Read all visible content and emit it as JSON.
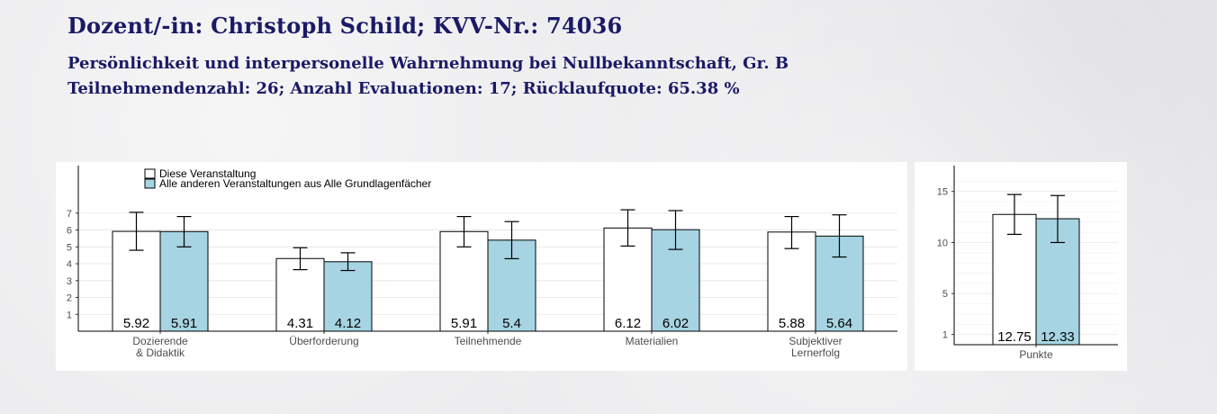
{
  "header": {
    "title": "Dozent/-in: Christoph Schild; KVV-Nr.: 74036",
    "course": "Persönlichkeit und interpersonelle Wahrnehmung bei Nullbekanntschaft, Gr. B",
    "stats": "Teilnehmendenzahl: 26; Anzahl Evaluationen: 17; Rücklaufquote: 65.38 %"
  },
  "colors": {
    "series_a": "#ffffff",
    "series_b": "#a6d4e2",
    "header_text": "#1a1a66"
  },
  "chart_data": [
    {
      "type": "bar",
      "categories": [
        "Dozierende\n& Didaktik",
        "Überforderung",
        "Teilnehmende",
        "Materialien",
        "Subjektiver\nLernerfolg"
      ],
      "series": [
        {
          "name": "Diese Veranstaltung",
          "values": [
            5.92,
            4.31,
            5.91,
            6.12,
            5.88
          ],
          "labels": [
            "5.92",
            "4.31",
            "5.91",
            "6.12",
            "5.88"
          ],
          "error_low": [
            4.8,
            3.65,
            5.0,
            5.05,
            4.9
          ],
          "error_high": [
            7.05,
            4.95,
            6.8,
            7.2,
            6.8
          ]
        },
        {
          "name": "Alle anderen Veranstaltungen aus Alle Grundlagenfächer",
          "values": [
            5.91,
            4.12,
            5.4,
            6.02,
            5.64
          ],
          "labels": [
            "5.91",
            "4.12",
            "5.4",
            "6.02",
            "5.64"
          ],
          "error_low": [
            5.0,
            3.6,
            4.3,
            4.85,
            4.4
          ],
          "error_high": [
            6.8,
            4.65,
            6.5,
            7.15,
            6.9
          ]
        }
      ],
      "yticks": [
        1,
        2,
        3,
        4,
        5,
        6,
        7
      ],
      "ylim": [
        0,
        9.5
      ],
      "legend": "top-left",
      "grid": true
    },
    {
      "type": "bar",
      "categories": [
        "Punkte"
      ],
      "series": [
        {
          "name": "Diese Veranstaltung",
          "values": [
            12.75
          ],
          "labels": [
            "12.75"
          ],
          "error_low": [
            10.8
          ],
          "error_high": [
            14.7
          ]
        },
        {
          "name": "Alle anderen Veranstaltungen aus Alle Grundlagenfächer",
          "values": [
            12.33
          ],
          "labels": [
            "12.33"
          ],
          "error_low": [
            10.0
          ],
          "error_high": [
            14.6
          ]
        }
      ],
      "yticks": [
        1,
        5,
        10,
        15
      ],
      "ylim": [
        0,
        17
      ],
      "grid": true
    }
  ]
}
